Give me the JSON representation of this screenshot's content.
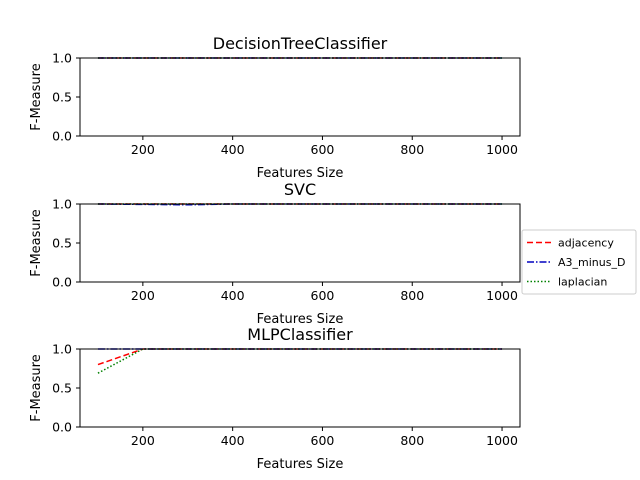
{
  "chart_data": [
    {
      "type": "line",
      "title": "DecisionTreeClassifier",
      "xlabel": "Features Size",
      "ylabel": "F-Measure",
      "xlim": [
        60,
        1040
      ],
      "ylim": [
        0,
        1
      ],
      "xticks": [
        200,
        400,
        600,
        800,
        1000
      ],
      "yticks": [
        0.0,
        0.5,
        1.0
      ],
      "x": [
        100,
        200,
        300,
        400,
        500,
        600,
        700,
        800,
        900,
        1000
      ],
      "series": [
        {
          "name": "adjacency",
          "color": "#ff0000",
          "dash": "6,3",
          "values": [
            1,
            1,
            1,
            1,
            1,
            1,
            1,
            1,
            1,
            1
          ]
        },
        {
          "name": "A3_minus_D",
          "color": "#0000bf",
          "dash": "7,2,1.5,2",
          "values": [
            1,
            1,
            1,
            1,
            1,
            1,
            1,
            1,
            1,
            1
          ]
        },
        {
          "name": "laplacian",
          "color": "#008000",
          "dash": "1.5,2",
          "values": [
            1,
            1,
            1,
            1,
            1,
            1,
            1,
            1,
            1,
            1
          ]
        }
      ]
    },
    {
      "type": "line",
      "title": "SVC",
      "xlabel": "Features Size",
      "ylabel": "F-Measure",
      "xlim": [
        60,
        1040
      ],
      "ylim": [
        0,
        1
      ],
      "xticks": [
        200,
        400,
        600,
        800,
        1000
      ],
      "yticks": [
        0.0,
        0.5,
        1.0
      ],
      "x": [
        100,
        200,
        300,
        400,
        500,
        600,
        700,
        800,
        900,
        1000
      ],
      "series": [
        {
          "name": "adjacency",
          "color": "#ff0000",
          "dash": "6,3",
          "values": [
            1,
            1,
            1,
            1,
            1,
            1,
            1,
            1,
            1,
            1
          ]
        },
        {
          "name": "A3_minus_D",
          "color": "#0000bf",
          "dash": "7,2,1.5,2",
          "values": [
            1,
            0.995,
            0.99,
            1,
            1,
            1,
            1,
            1,
            1,
            1
          ]
        },
        {
          "name": "laplacian",
          "color": "#008000",
          "dash": "1.5,2",
          "values": [
            1,
            1,
            1,
            1,
            1,
            1,
            1,
            1,
            1,
            1
          ]
        }
      ]
    },
    {
      "type": "line",
      "title": "MLPClassifier",
      "xlabel": "Features Size",
      "ylabel": "F-Measure",
      "xlim": [
        60,
        1040
      ],
      "ylim": [
        0,
        1
      ],
      "xticks": [
        200,
        400,
        600,
        800,
        1000
      ],
      "yticks": [
        0.0,
        0.5,
        1.0
      ],
      "x": [
        100,
        200,
        300,
        400,
        500,
        600,
        700,
        800,
        900,
        1000
      ],
      "series": [
        {
          "name": "adjacency",
          "color": "#ff0000",
          "dash": "6,3",
          "values": [
            0.8,
            1,
            1,
            1,
            1,
            1,
            1,
            1,
            1,
            1
          ]
        },
        {
          "name": "A3_minus_D",
          "color": "#0000bf",
          "dash": "7,2,1.5,2",
          "values": [
            1,
            1,
            1,
            1,
            1,
            1,
            1,
            1,
            1,
            1
          ]
        },
        {
          "name": "laplacian",
          "color": "#008000",
          "dash": "1.5,2",
          "values": [
            0.69,
            1,
            1,
            1,
            1,
            1,
            1,
            1,
            1,
            1
          ]
        }
      ]
    }
  ],
  "legend": {
    "placement": "right",
    "entries": [
      {
        "label": "adjacency",
        "color": "#ff0000",
        "dash": "6,3"
      },
      {
        "label": "A3_minus_D",
        "color": "#0000bf",
        "dash": "7,2,1.5,2"
      },
      {
        "label": "laplacian",
        "color": "#008000",
        "dash": "1.5,2"
      }
    ]
  }
}
